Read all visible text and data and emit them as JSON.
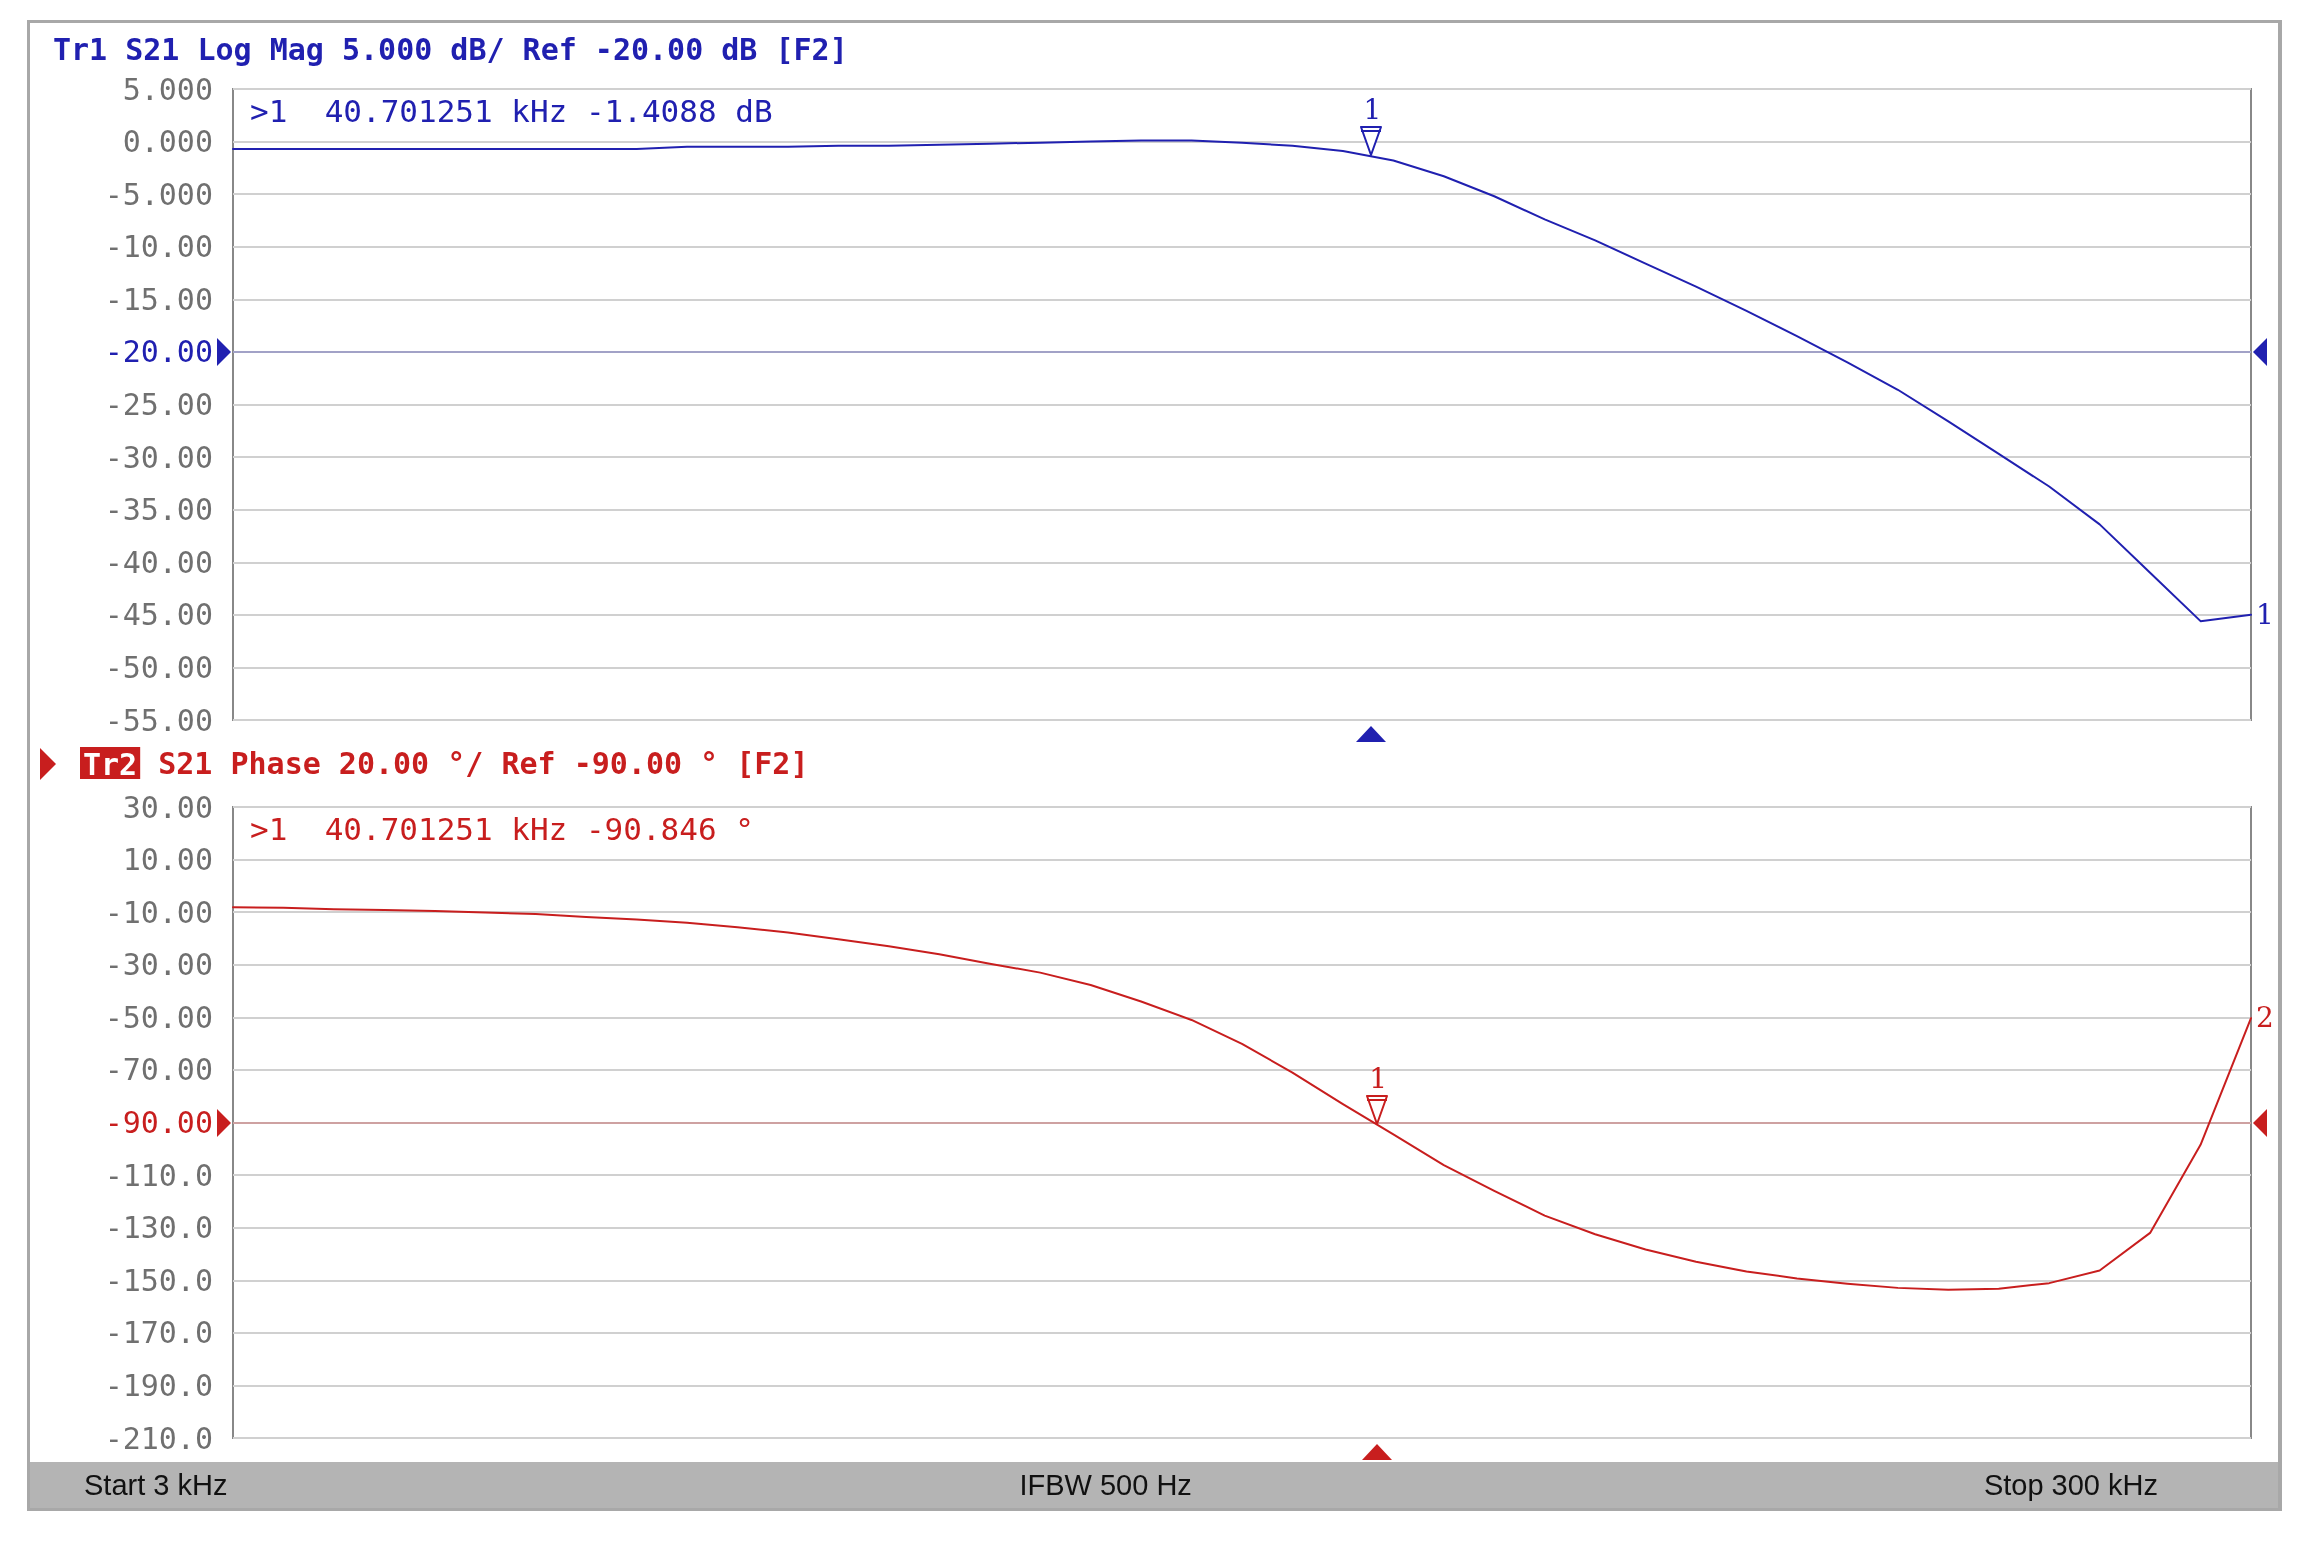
{
  "chart_data": [
    {
      "type": "line",
      "title": "Tr1 S21 Log Mag 5.000 dB/ Ref -20.00 dB [F2]",
      "ylim": [
        -55,
        5
      ],
      "yticks": [
        {
          "value": 5,
          "label": "5.000"
        },
        {
          "value": 0,
          "label": "0.000"
        },
        {
          "value": -5,
          "label": "-5.000"
        },
        {
          "value": -10,
          "label": "-10.00"
        },
        {
          "value": -15,
          "label": "-15.00"
        },
        {
          "value": -20,
          "label": "-20.00"
        },
        {
          "value": -25,
          "label": "-25.00"
        },
        {
          "value": -30,
          "label": "-30.00"
        },
        {
          "value": -35,
          "label": "-35.00"
        },
        {
          "value": -40,
          "label": "-40.00"
        },
        {
          "value": -45,
          "label": "-45.00"
        },
        {
          "value": -50,
          "label": "-50.00"
        },
        {
          "value": -55,
          "label": "-55.00"
        }
      ],
      "tick_labels": "y",
      "grid": "y",
      "ref_lines": [
        {
          "axis": "y",
          "value": -20
        }
      ],
      "categories": [
        null,
        null,
        null,
        null,
        null,
        null,
        null,
        null,
        null,
        null,
        null,
        null,
        null,
        null,
        null,
        null,
        null,
        null,
        null,
        null,
        null,
        null,
        null,
        null,
        null,
        null,
        null,
        null,
        null,
        null,
        null,
        null,
        null,
        null,
        null,
        null,
        null,
        null,
        null,
        null,
        null
      ],
      "series": [
        {
          "color": "#2020b0",
          "values": [
            -0.7,
            -0.7,
            -0.7,
            -0.7,
            -0.7,
            -0.7,
            -0.7,
            -0.7,
            -0.7,
            -0.5,
            -0.5,
            -0.5,
            -0.4,
            -0.4,
            -0.3,
            -0.2,
            -0.1,
            0.0,
            0.1,
            0.1,
            -0.1,
            -0.4,
            -0.9,
            -1.8,
            -3.3,
            -5.2,
            -7.4,
            -9.4,
            -11.6,
            -13.8,
            -16.1,
            -18.5,
            -21.0,
            -23.6,
            -26.6,
            -29.7,
            -32.8,
            -36.4,
            -41.0,
            -45.6,
            -45.0
          ]
        }
      ],
      "annotations": [
        ">1  40.701251 kHz -1.4088 dB",
        "1",
        {
          "text": "1",
          "y": -1.4088
        }
      ]
    },
    {
      "type": "line",
      "title": "Tr2 S21 Phase 20.00 °/ Ref -90.00 ° [F2]",
      "ylim": [
        -210,
        30
      ],
      "yticks": [
        {
          "value": 30,
          "label": "30.00"
        },
        {
          "value": 10,
          "label": "10.00"
        },
        {
          "value": -10,
          "label": "-10.00"
        },
        {
          "value": -30,
          "label": "-30.00"
        },
        {
          "value": -50,
          "label": "-50.00"
        },
        {
          "value": -70,
          "label": "-70.00"
        },
        {
          "value": -90,
          "label": "-90.00"
        },
        {
          "value": -110,
          "label": "-110.0"
        },
        {
          "value": -130,
          "label": "-130.0"
        },
        {
          "value": -150,
          "label": "-150.0"
        },
        {
          "value": -170,
          "label": "-170.0"
        },
        {
          "value": -190,
          "label": "-190.0"
        },
        {
          "value": -210,
          "label": "-210.0"
        }
      ],
      "tick_labels": "y",
      "grid": "y",
      "ref_lines": [
        {
          "axis": "y",
          "value": -90
        }
      ],
      "categories": [
        null,
        null,
        null,
        null,
        null,
        null,
        null,
        null,
        null,
        null,
        null,
        null,
        null,
        null,
        null,
        null,
        null,
        null,
        null,
        null,
        null,
        null,
        null,
        null,
        null,
        null,
        null,
        null,
        null,
        null,
        null,
        null,
        null,
        null,
        null,
        null,
        null,
        null,
        null,
        null,
        null
      ],
      "series": [
        {
          "color": "#c81e1e",
          "values": [
            -8.1,
            -8.3,
            -8.9,
            -9.2,
            -9.6,
            -10.1,
            -10.7,
            -11.8,
            -12.8,
            -14.0,
            -15.7,
            -17.7,
            -20.3,
            -23.0,
            -26.0,
            -29.6,
            -33.0,
            -37.7,
            -44.0,
            -51.0,
            -60.1,
            -71.0,
            -83.0,
            -94.5,
            -106.2,
            -116.0,
            -125.4,
            -132.5,
            -138.3,
            -143.0,
            -146.7,
            -149.3,
            -151.3,
            -152.9,
            -153.6,
            -153.2,
            -151.1,
            -146.3,
            -132.0,
            -98.5,
            -50.3
          ]
        }
      ],
      "annotations": [
        ">1  40.701251 kHz -90.846 °",
        "2",
        "Start 3 kHz",
        "IFBW 500 Hz",
        "Stop 300 kHz",
        {
          "text": "1",
          "y": -90.846
        }
      ]
    }
  ]
}
